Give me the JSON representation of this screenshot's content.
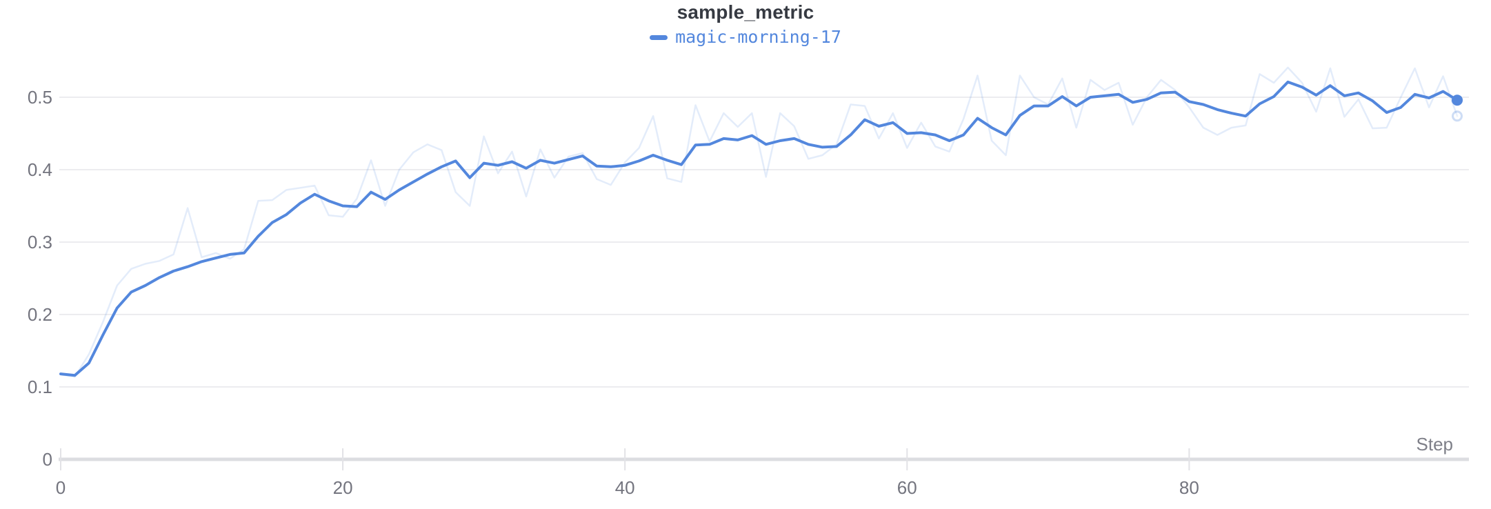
{
  "header": {
    "title": "sample_metric"
  },
  "legend": {
    "items": [
      {
        "label": "magic-morning-17",
        "color": "#5387dd"
      }
    ]
  },
  "axes": {
    "x_label": "Step",
    "x_ticks": [
      0,
      20,
      40,
      60,
      80
    ],
    "x_tick_labels": [
      "0",
      "20",
      "40",
      "60",
      "80"
    ],
    "y_ticks": [
      0,
      0.1,
      0.2,
      0.3,
      0.4,
      0.5
    ],
    "y_tick_labels": [
      "0",
      "0.1",
      "0.2",
      "0.3",
      "0.4",
      "0.5"
    ]
  },
  "colors": {
    "accent": "#5387dd",
    "raw_line_opacity": 0.16,
    "title_text": "#363a42",
    "tick_text": "#73747e",
    "gridline": "#ececef",
    "axis_line": "#dcdde1"
  },
  "chart_data": {
    "type": "line",
    "title": "sample_metric",
    "xlabel": "Step",
    "ylabel": "",
    "x_note": "x = step index 0..99, spacing 1",
    "x_range": [
      0,
      99
    ],
    "ylim": [
      0,
      0.578
    ],
    "grid": "horizontal",
    "legend_position": "top-center",
    "series": [
      {
        "name": "magic-morning-17",
        "kind": "smoothed",
        "color": "#5387dd",
        "width": 4,
        "opacity": 1,
        "end_marker": "dot",
        "values": [
          0.118,
          0.116,
          0.133,
          0.172,
          0.209,
          0.231,
          0.24,
          0.251,
          0.26,
          0.266,
          0.273,
          0.278,
          0.283,
          0.285,
          0.308,
          0.327,
          0.338,
          0.354,
          0.366,
          0.357,
          0.35,
          0.349,
          0.369,
          0.359,
          0.372,
          0.383,
          0.394,
          0.404,
          0.412,
          0.389,
          0.409,
          0.406,
          0.411,
          0.402,
          0.413,
          0.409,
          0.414,
          0.419,
          0.405,
          0.404,
          0.406,
          0.412,
          0.42,
          0.413,
          0.407,
          0.434,
          0.435,
          0.443,
          0.441,
          0.447,
          0.435,
          0.44,
          0.443,
          0.435,
          0.431,
          0.432,
          0.448,
          0.469,
          0.46,
          0.465,
          0.45,
          0.451,
          0.448,
          0.44,
          0.448,
          0.471,
          0.458,
          0.448,
          0.475,
          0.488,
          0.488,
          0.501,
          0.488,
          0.5,
          0.502,
          0.504,
          0.493,
          0.497,
          0.506,
          0.507,
          0.494,
          0.49,
          0.483,
          0.478,
          0.474,
          0.491,
          0.501,
          0.521,
          0.514,
          0.503,
          0.516,
          0.502,
          0.506,
          0.495,
          0.479,
          0.486,
          0.504,
          0.499,
          0.508,
          0.496
        ]
      },
      {
        "name": "magic-morning-17 (original, unsmoothed)",
        "kind": "raw",
        "color": "#5387dd",
        "width": 2.5,
        "opacity": 0.16,
        "end_marker": "ring",
        "values": [
          0.117,
          0.114,
          0.145,
          0.19,
          0.24,
          0.263,
          0.27,
          0.274,
          0.283,
          0.347,
          0.279,
          0.285,
          0.277,
          0.29,
          0.357,
          0.358,
          0.372,
          0.375,
          0.378,
          0.337,
          0.335,
          0.36,
          0.413,
          0.35,
          0.4,
          0.424,
          0.435,
          0.427,
          0.369,
          0.35,
          0.446,
          0.395,
          0.425,
          0.363,
          0.428,
          0.389,
          0.418,
          0.423,
          0.387,
          0.379,
          0.41,
          0.43,
          0.474,
          0.388,
          0.383,
          0.489,
          0.439,
          0.478,
          0.459,
          0.478,
          0.39,
          0.478,
          0.46,
          0.415,
          0.42,
          0.435,
          0.49,
          0.488,
          0.443,
          0.478,
          0.43,
          0.465,
          0.432,
          0.425,
          0.47,
          0.53,
          0.44,
          0.42,
          0.53,
          0.5,
          0.49,
          0.526,
          0.458,
          0.524,
          0.51,
          0.52,
          0.462,
          0.5,
          0.524,
          0.51,
          0.486,
          0.458,
          0.448,
          0.458,
          0.461,
          0.532,
          0.52,
          0.541,
          0.52,
          0.48,
          0.54,
          0.473,
          0.497,
          0.457,
          0.458,
          0.5,
          0.54,
          0.486,
          0.529,
          0.474
        ]
      }
    ]
  }
}
